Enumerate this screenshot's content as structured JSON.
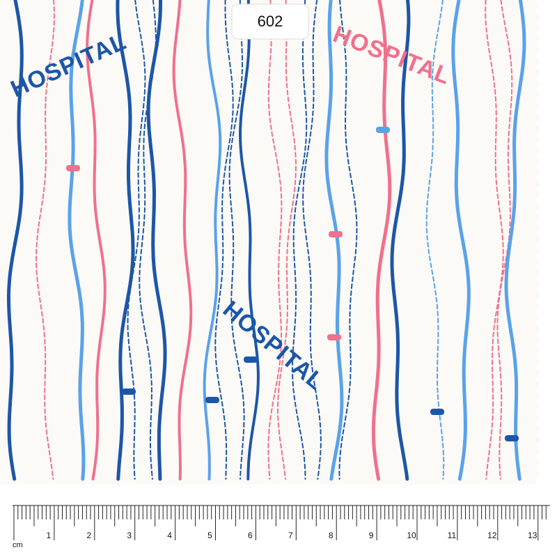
{
  "swatch": {
    "label": "602",
    "prints": [
      "HOSPITAL",
      "HOSPITAL",
      "HOSPITAL"
    ]
  },
  "ruler": {
    "unit": "cm",
    "marks": [
      1,
      2,
      3,
      4,
      5,
      6,
      7,
      8,
      9,
      10,
      11,
      12,
      13
    ]
  }
}
